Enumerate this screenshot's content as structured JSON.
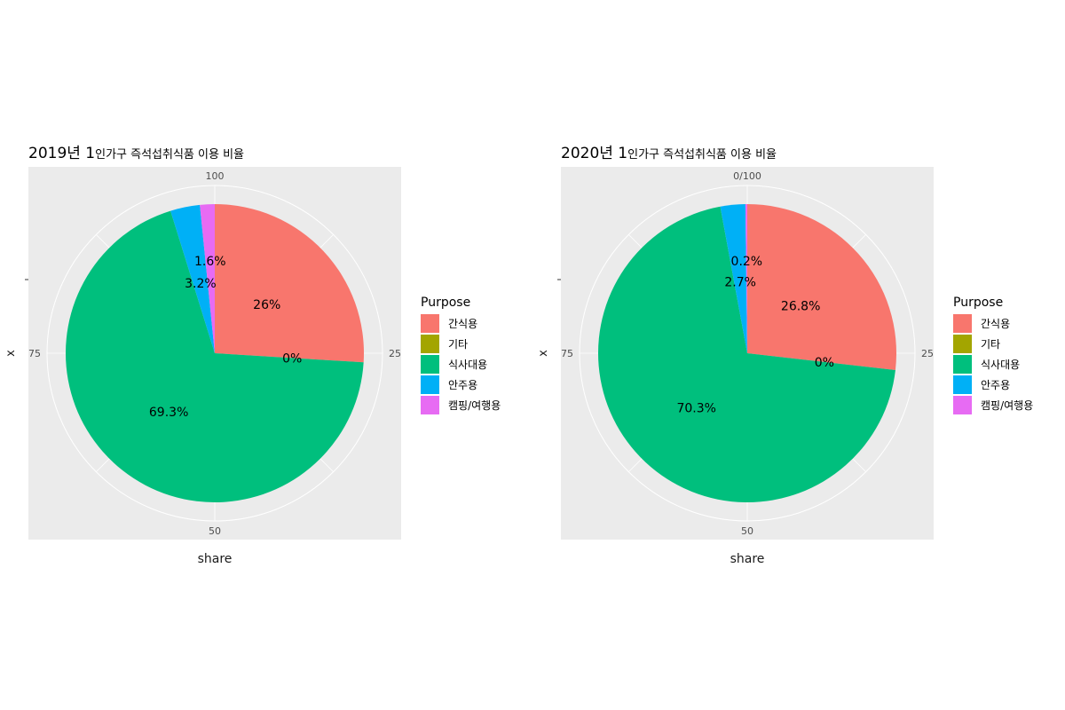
{
  "colors": {
    "panel_bg": "#ebebeb",
    "grid": "#ffffff",
    "text": "#000000",
    "tick_text": "#4d4d4d",
    "axis_text": "#1a1a1a"
  },
  "chart_data": [
    {
      "type": "pie",
      "title_bold": "2019년 1",
      "title_rest": "인가구 즉석섭취식품 이용 비율",
      "xlabel": "share",
      "ylabel": "x",
      "theta_ticks": [
        "100",
        "25",
        "50",
        "75"
      ],
      "theta_top_label": "100",
      "grid": true,
      "legend_title": "Purpose",
      "legend_position": "right",
      "categories": [
        "간식용",
        "기타",
        "식사대용",
        "안주용",
        "캠핑/여행용"
      ],
      "colors": [
        "#F8766D",
        "#A3A500",
        "#00BF7D",
        "#00B0F6",
        "#E76BF3"
      ],
      "values": [
        26,
        0,
        69.3,
        3.2,
        1.6
      ],
      "labels": [
        "26%",
        "0%",
        "69.3%",
        "3.2%",
        "1.6%"
      ]
    },
    {
      "type": "pie",
      "title_bold": "2020년 1",
      "title_rest": "인가구 즉석섭취식품 이용 비율",
      "xlabel": "share",
      "ylabel": "x",
      "theta_ticks": [
        "0/100",
        "25",
        "50",
        "75"
      ],
      "theta_top_label": "0/100",
      "grid": true,
      "legend_title": "Purpose",
      "legend_position": "right",
      "categories": [
        "간식용",
        "기타",
        "식사대용",
        "안주용",
        "캠핑/여행용"
      ],
      "colors": [
        "#F8766D",
        "#A3A500",
        "#00BF7D",
        "#00B0F6",
        "#E76BF3"
      ],
      "values": [
        26.8,
        0,
        70.3,
        2.7,
        0.2
      ],
      "labels": [
        "26.8%",
        "0%",
        "70.3%",
        "2.7%",
        "0.2%"
      ]
    }
  ]
}
